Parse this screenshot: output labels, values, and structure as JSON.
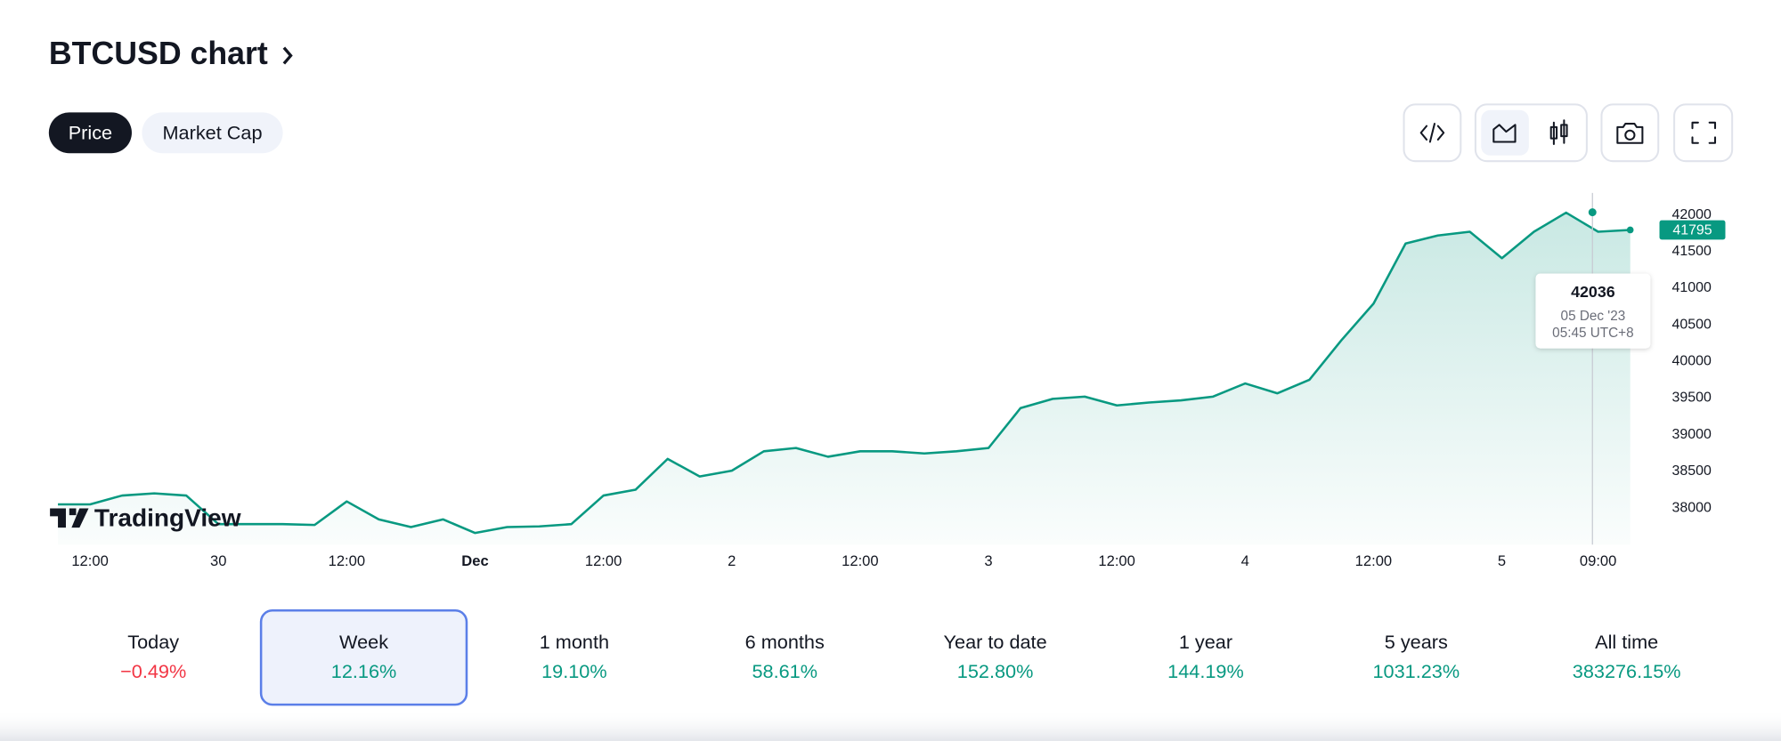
{
  "header": {
    "title": "BTCUSD chart"
  },
  "tabs": [
    {
      "label": "Price",
      "selected": true
    },
    {
      "label": "Market Cap",
      "selected": false
    }
  ],
  "logo": "TradingView",
  "chart_data": {
    "type": "line",
    "color": "#089981",
    "categories": [
      null,
      "12:00",
      null,
      null,
      null,
      "30",
      null,
      null,
      null,
      "12:00",
      null,
      null,
      null,
      "Dec",
      null,
      null,
      null,
      "12:00",
      null,
      null,
      null,
      "2",
      null,
      null,
      null,
      "12:00",
      null,
      null,
      null,
      "3",
      null,
      null,
      null,
      "12:00",
      null,
      null,
      null,
      "4",
      null,
      null,
      null,
      "12:00",
      null,
      null,
      null,
      "5",
      null,
      null,
      "09:00",
      null
    ],
    "values": [
      38050,
      38050,
      38170,
      38200,
      38170,
      37780,
      37780,
      37780,
      37770,
      38090,
      37845,
      37740,
      37845,
      37660,
      37740,
      37750,
      37780,
      38170,
      38250,
      38670,
      38430,
      38510,
      38775,
      38820,
      38700,
      38775,
      38775,
      38745,
      38775,
      38820,
      39365,
      39490,
      39520,
      39400,
      39440,
      39470,
      39520,
      39700,
      39565,
      39750,
      40290,
      40790,
      41610,
      41720,
      41770,
      41410,
      41770,
      42030,
      41770,
      41795
    ],
    "ylim": [
      37500,
      42300
    ],
    "yticks": [
      38000,
      38500,
      39000,
      39500,
      40000,
      40500,
      41000,
      41500,
      42000
    ],
    "grid": false,
    "tooltip": {
      "value": 42036,
      "date": "05 Dec '23",
      "time": "05:45 UTC+8"
    }
  },
  "periods": [
    {
      "label": "Today",
      "change": "−0.49%",
      "selected": false
    },
    {
      "label": "Week",
      "change": "12.16%",
      "selected": true
    },
    {
      "label": "1 month",
      "change": "19.10%",
      "selected": false
    },
    {
      "label": "6 months",
      "change": "58.61%",
      "selected": false
    },
    {
      "label": "Year to date",
      "change": "152.80%",
      "selected": false
    },
    {
      "label": "1 year",
      "change": "144.19%",
      "selected": false
    },
    {
      "label": "5 years",
      "change": "1031.23%",
      "selected": false
    },
    {
      "label": "All time",
      "change": "383276.15%",
      "selected": false
    }
  ]
}
